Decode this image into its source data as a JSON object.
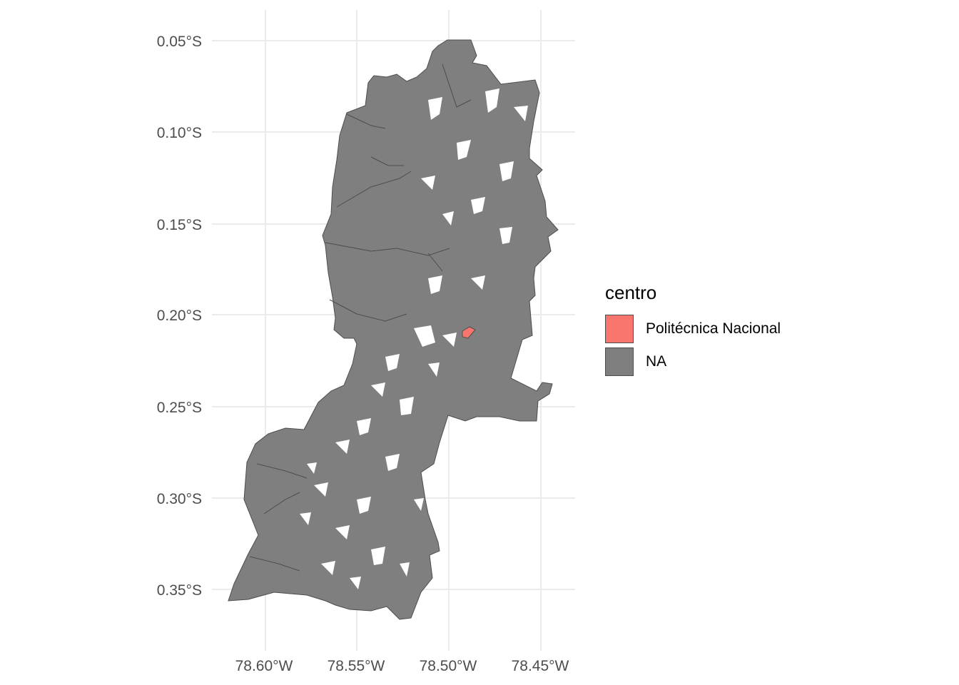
{
  "map": {
    "y_axis_ticks": [
      "0.05°S",
      "0.10°S",
      "0.15°S",
      "0.20°S",
      "0.25°S",
      "0.30°S",
      "0.35°S"
    ],
    "x_axis_ticks": [
      "78.60°W",
      "78.55°W",
      "78.50°W",
      "78.45°W"
    ],
    "fill_colors": {
      "highlight": "#f8766d",
      "na": "#7f7f7f",
      "background": "#ffffff",
      "grid": "#ebebeb"
    }
  },
  "legend": {
    "title": "centro",
    "items": [
      {
        "label": "Politécnica Nacional",
        "color": "#f8766d"
      },
      {
        "label": "NA",
        "color": "#7f7f7f"
      }
    ]
  },
  "chart_data": {
    "type": "choropleth-map",
    "fill_variable": "centro",
    "categories": [
      "Politécnica Nacional",
      "NA"
    ],
    "highlighted_region": "Politécnica Nacional",
    "xlim": [
      -78.625,
      -78.43
    ],
    "ylim": [
      -0.37,
      -0.04
    ],
    "x_ticks": [
      -78.6,
      -78.55,
      -78.5,
      -78.45
    ],
    "y_ticks": [
      -0.05,
      -0.1,
      -0.15,
      -0.2,
      -0.25,
      -0.3,
      -0.35
    ],
    "grid": true,
    "legend_position": "right"
  }
}
